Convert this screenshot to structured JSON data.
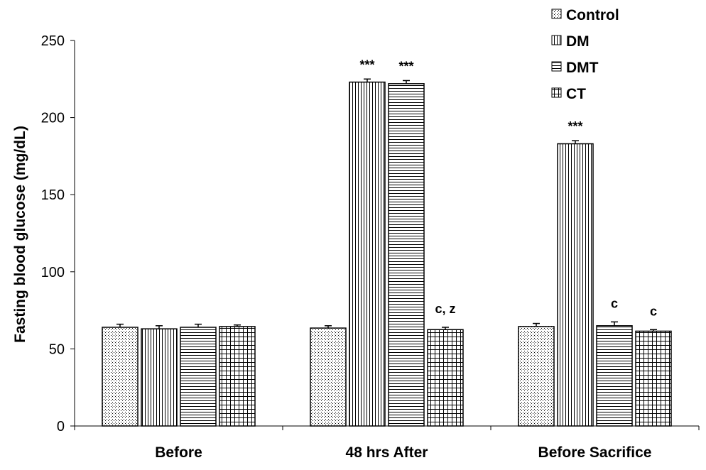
{
  "chart_data": {
    "type": "bar",
    "title": "",
    "xlabel": "",
    "ylabel": "Fasting blood glucose (mg/dL)",
    "ylim": [
      0,
      250
    ],
    "yticks": [
      "0",
      "50",
      "100",
      "150",
      "200",
      "250"
    ],
    "categories": [
      "Before",
      "48 hrs After",
      "Before Sacrifice"
    ],
    "series": [
      {
        "name": "Control",
        "pattern": "dots",
        "values": [
          64,
          63.5,
          64.5
        ],
        "errors": [
          2,
          1.5,
          2
        ]
      },
      {
        "name": "DM",
        "pattern": "vertical",
        "values": [
          63,
          223,
          183
        ],
        "errors": [
          2,
          2,
          2
        ]
      },
      {
        "name": "DMT",
        "pattern": "horizontal",
        "values": [
          64,
          222,
          65
        ],
        "errors": [
          2,
          2,
          2.5
        ]
      },
      {
        "name": "CT",
        "pattern": "grid",
        "values": [
          64.5,
          62.5,
          61.5
        ],
        "errors": [
          1,
          1.5,
          1
        ]
      }
    ],
    "annotations": [
      {
        "category": 1,
        "series": 1,
        "text": "***"
      },
      {
        "category": 1,
        "series": 2,
        "text": "***"
      },
      {
        "category": 1,
        "series": 3,
        "text": "c, z"
      },
      {
        "category": 2,
        "series": 1,
        "text": "***"
      },
      {
        "category": 2,
        "series": 2,
        "text": "c"
      },
      {
        "category": 2,
        "series": 3,
        "text": "c"
      }
    ],
    "legend_position": "top-right",
    "grid": false,
    "colors": {
      "bar_fill": "#ffffff",
      "stroke": "#000000",
      "background": "#ffffff"
    }
  }
}
